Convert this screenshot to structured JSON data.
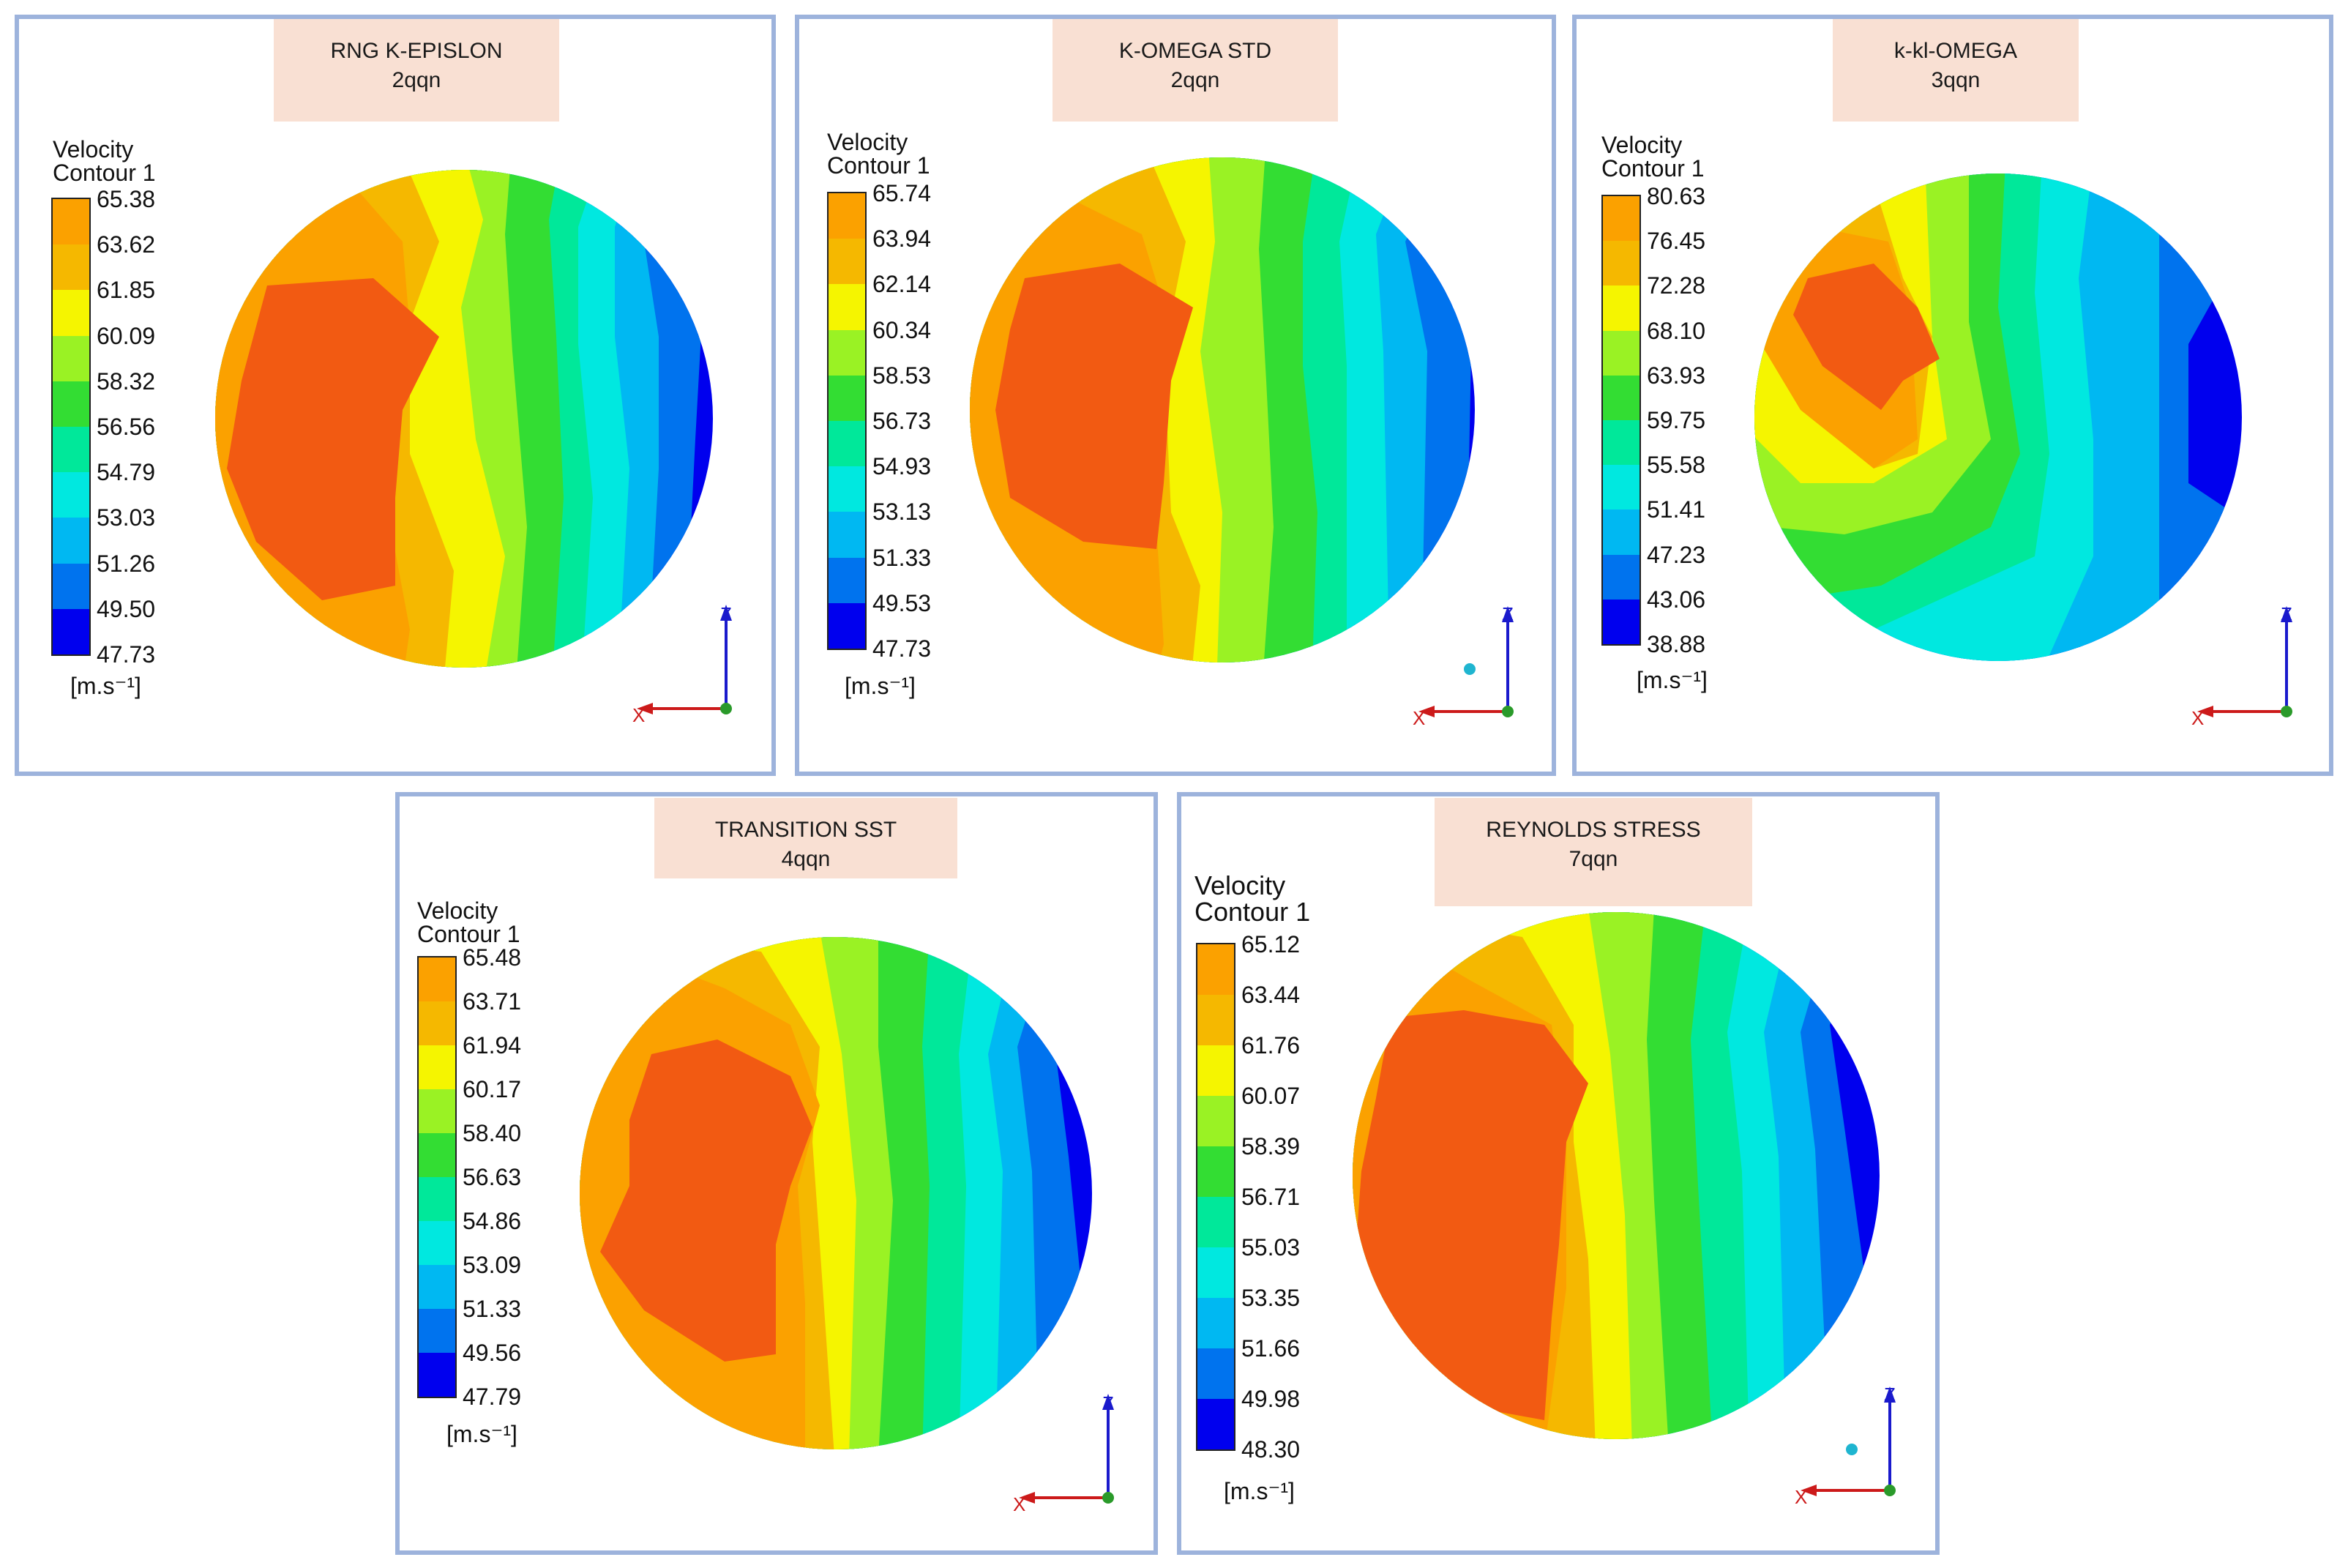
{
  "colormap": [
    "#0000ee",
    "#0073ee",
    "#00b8f2",
    "#00e8e0",
    "#00e89a",
    "#33dd33",
    "#9af224",
    "#f5f500",
    "#f5b800",
    "#fba100",
    "#f25a12"
  ],
  "panels": [
    {
      "title": "RNG K-EPISLON",
      "subtitle": "2qqn",
      "legend_title_line1": "Velocity",
      "legend_title_line2": "Contour 1",
      "units": "[m.s⁻¹]",
      "levels": [
        "65.38",
        "63.62",
        "61.85",
        "60.09",
        "58.32",
        "56.56",
        "54.79",
        "53.03",
        "51.26",
        "49.50",
        "47.73"
      ],
      "axis_x": "X",
      "axis_z": "Z"
    },
    {
      "title": "K-OMEGA STD",
      "subtitle": "2qqn",
      "legend_title_line1": "Velocity",
      "legend_title_line2": "Contour 1",
      "units": "[m.s⁻¹]",
      "levels": [
        "65.74",
        "63.94",
        "62.14",
        "60.34",
        "58.53",
        "56.73",
        "54.93",
        "53.13",
        "51.33",
        "49.53",
        "47.73"
      ],
      "axis_x": "X",
      "axis_z": "Z"
    },
    {
      "title": "k-kl-OMEGA",
      "subtitle": "3qqn",
      "legend_title_line1": "Velocity",
      "legend_title_line2": "Contour 1",
      "units": "[m.s⁻¹]",
      "levels": [
        "80.63",
        "76.45",
        "72.28",
        "68.10",
        "63.93",
        "59.75",
        "55.58",
        "51.41",
        "47.23",
        "43.06",
        "38.88"
      ],
      "axis_x": "X",
      "axis_z": "Z"
    },
    {
      "title": "TRANSITION  SST",
      "subtitle": "4qqn",
      "legend_title_line1": "Velocity",
      "legend_title_line2": "Contour 1",
      "units": "[m.s⁻¹]",
      "levels": [
        "65.48",
        "63.71",
        "61.94",
        "60.17",
        "58.40",
        "56.63",
        "54.86",
        "53.09",
        "51.33",
        "49.56",
        "47.79"
      ],
      "axis_x": "X",
      "axis_z": "Z"
    },
    {
      "title": "REYNOLDS  STRESS",
      "subtitle": "7qqn",
      "legend_title_line1": "Velocity",
      "legend_title_line2": "Contour 1",
      "units": "[m.s⁻¹]",
      "levels": [
        "65.12",
        "63.44",
        "61.76",
        "60.07",
        "58.39",
        "56.71",
        "55.03",
        "53.35",
        "51.66",
        "49.98",
        "48.30"
      ],
      "axis_x": "X",
      "axis_z": "Z"
    }
  ]
}
